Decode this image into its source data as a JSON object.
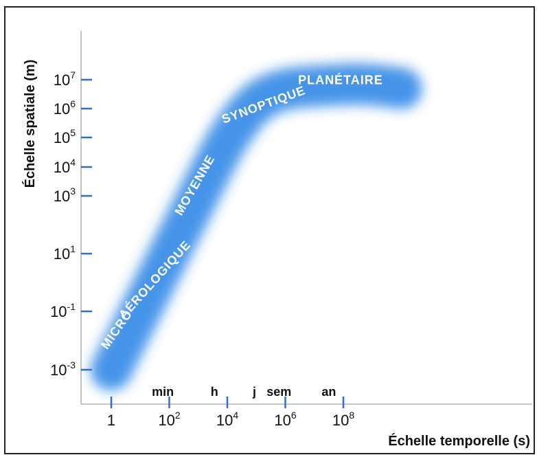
{
  "chart_data": {
    "type": "area",
    "xlabel": "Échelle temporelle (s)",
    "ylabel": "Échelle spatiale (m)",
    "x_scale": "log",
    "y_scale": "log",
    "x_ticks": [
      {
        "value": 1,
        "base": "1",
        "exp": ""
      },
      {
        "value": 100,
        "base": "10",
        "exp": "2"
      },
      {
        "value": 10000,
        "base": "10",
        "exp": "4"
      },
      {
        "value": 1000000,
        "base": "10",
        "exp": "6"
      },
      {
        "value": 100000000,
        "base": "10",
        "exp": "8"
      }
    ],
    "y_ticks": [
      {
        "value": 0.001,
        "base": "10",
        "exp": "-3"
      },
      {
        "value": 0.1,
        "base": "10",
        "exp": "-1"
      },
      {
        "value": 10,
        "base": "10",
        "exp": "1"
      },
      {
        "value": 1000,
        "base": "10",
        "exp": "3"
      },
      {
        "value": 10000,
        "base": "10",
        "exp": "4"
      },
      {
        "value": 100000,
        "base": "10",
        "exp": "5"
      },
      {
        "value": 1000000,
        "base": "10",
        "exp": "6"
      },
      {
        "value": 10000000,
        "base": "10",
        "exp": "7"
      }
    ],
    "time_units": [
      {
        "label": "min",
        "value": 60
      },
      {
        "label": "h",
        "value": 3600
      },
      {
        "label": "j",
        "value": 86400
      },
      {
        "label": "sem",
        "value": 604800
      },
      {
        "label": "an",
        "value": 31536000
      }
    ],
    "band": {
      "color": "#3d8fe8",
      "points": [
        {
          "x": 1,
          "y": 0.001
        },
        {
          "x": 10,
          "y": 0.1
        },
        {
          "x": 100,
          "y": 10
        },
        {
          "x": 1000,
          "y": 1000
        },
        {
          "x": 10000,
          "y": 100000
        },
        {
          "x": 100000,
          "y": 2000000
        },
        {
          "x": 1000000,
          "y": 5000000
        },
        {
          "x": 10000000,
          "y": 6000000
        },
        {
          "x": 100000000,
          "y": 7000000
        },
        {
          "x": 1000000000,
          "y": 7000000
        },
        {
          "x": 10000000000,
          "y": 5000000
        }
      ]
    },
    "regions": [
      {
        "label": "MICRO",
        "x": 2,
        "y": 0.02,
        "angle": -55
      },
      {
        "label": "AÉROLOGIQUE",
        "x": 40,
        "y": 1,
        "angle": -48
      },
      {
        "label": "MOYENNE",
        "x": 1000,
        "y": 2000,
        "angle": -60
      },
      {
        "label": "SYNOPTIQUE",
        "x": 200000,
        "y": 1000000,
        "angle": -20
      },
      {
        "label": "PLANÉTAIRE",
        "x": 80000000,
        "y": 7000000,
        "angle": 0
      }
    ],
    "grid": false,
    "legend": "none"
  }
}
